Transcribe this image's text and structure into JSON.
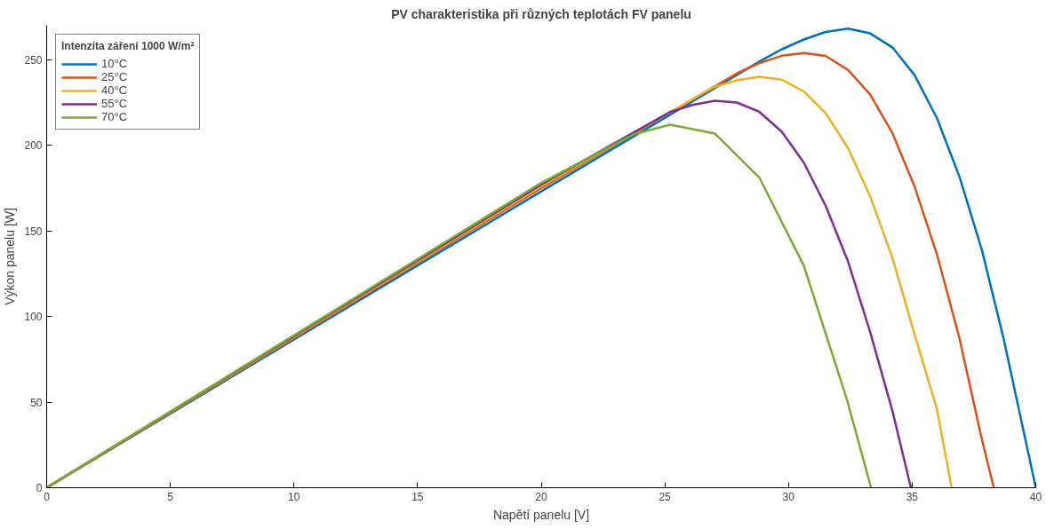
{
  "chart_data": {
    "type": "line",
    "title": "PV charakteristika při různých teplotách FV panelu",
    "xlabel": "Napětí panelu [V]",
    "ylabel": "Výkon panelu [W]",
    "legend_title": "Intenzita záření 1000 W/m²",
    "legend": "top left",
    "grid": false,
    "line_style": "solid",
    "xlim": [
      0,
      40
    ],
    "ylim": [
      0,
      270
    ],
    "xticks": [
      0,
      5,
      10,
      15,
      20,
      25,
      30,
      35,
      40
    ],
    "yticks": [
      0,
      50,
      100,
      150,
      200,
      250
    ],
    "series": [
      {
        "name": "10°C",
        "color": "#0072bd",
        "x": [
          0,
          20,
          27.91,
          28.82,
          29.73,
          30.62,
          31.5,
          32.41,
          33.3,
          34.21,
          35.1,
          36.01,
          36.92,
          37.83,
          38.7,
          40.0
        ],
        "values": [
          0,
          173,
          241,
          248.8,
          256,
          261.7,
          266.1,
          268.1,
          265.3,
          257,
          240.9,
          215.6,
          181.3,
          138.3,
          87,
          0
        ]
      },
      {
        "name": "25°C",
        "color": "#d95319",
        "x": [
          0,
          20,
          27.91,
          28.82,
          29.73,
          30.62,
          31.5,
          32.41,
          33.3,
          34.21,
          35.1,
          36.01,
          36.9,
          37.8,
          38.3
        ],
        "values": [
          0,
          175,
          241.9,
          247.9,
          252.2,
          253.8,
          252.1,
          243.9,
          229.6,
          206.8,
          175.8,
          135.9,
          88,
          29.5,
          0
        ]
      },
      {
        "name": "40°C",
        "color": "#edb120",
        "x": [
          0,
          20,
          26.99,
          27.91,
          28.82,
          29.73,
          30.62,
          31.5,
          32.41,
          33.3,
          34.21,
          35.1,
          36.0,
          36.6
        ],
        "values": [
          0,
          176,
          234,
          237.9,
          239.9,
          238.2,
          231.4,
          218.7,
          198.2,
          170.2,
          133.9,
          89.5,
          46,
          0
        ]
      },
      {
        "name": "55°C",
        "color": "#7e2f8e",
        "x": [
          0,
          20,
          25.23,
          26.11,
          27.02,
          27.91,
          28.82,
          29.73,
          30.62,
          31.5,
          32.41,
          33.3,
          34.2,
          34.95
        ],
        "values": [
          0,
          177,
          219.5,
          223.5,
          225.9,
          224.9,
          219.5,
          207.8,
          189.8,
          164.7,
          132,
          91,
          45,
          0
        ]
      },
      {
        "name": "70°C",
        "color": "#77ac30",
        "x": [
          0,
          20,
          23.74,
          25.2,
          27.02,
          28.82,
          30.62,
          32.36,
          33.34
        ],
        "values": [
          0,
          178,
          206.3,
          212,
          206.8,
          181.1,
          129.6,
          51.6,
          0
        ]
      }
    ]
  }
}
